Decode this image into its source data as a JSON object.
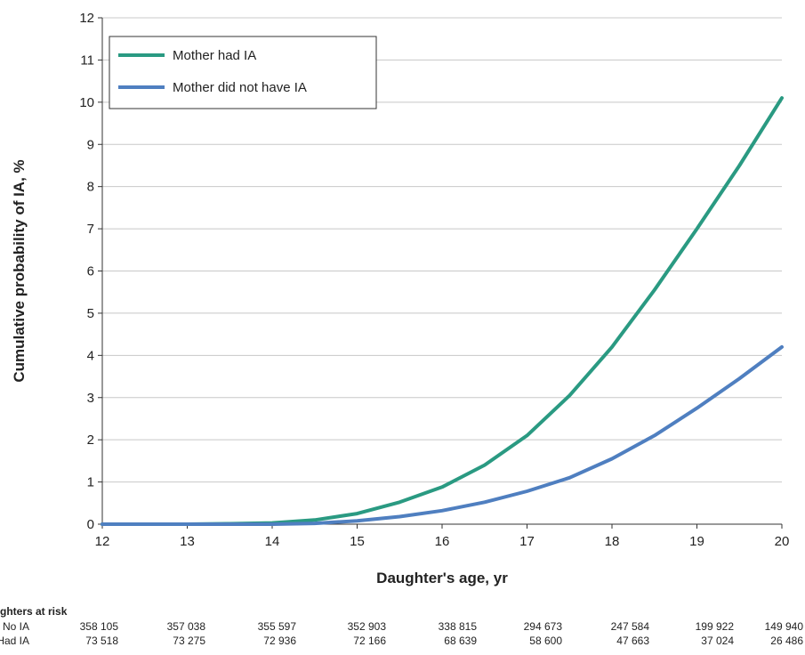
{
  "chart_data": {
    "type": "line",
    "xlabel": "Daughter's age, yr",
    "ylabel": "Cumulative probability of IA, %",
    "xlim": [
      12,
      20
    ],
    "ylim": [
      0,
      12
    ],
    "x_ticks": [
      12,
      13,
      14,
      15,
      16,
      17,
      18,
      19,
      20
    ],
    "y_ticks": [
      0,
      1,
      2,
      3,
      4,
      5,
      6,
      7,
      8,
      9,
      10,
      11,
      12
    ],
    "grid": "horizontal",
    "legend_position": "top-left",
    "series": [
      {
        "name": "Mother had IA",
        "color": "#2a9a82",
        "x": [
          12,
          13,
          13.5,
          14,
          14.5,
          15,
          15.5,
          16,
          16.5,
          17,
          17.5,
          18,
          18.5,
          19,
          19.5,
          20
        ],
        "y": [
          0,
          0,
          0.01,
          0.03,
          0.1,
          0.25,
          0.52,
          0.88,
          1.4,
          2.1,
          3.05,
          4.2,
          5.55,
          7.0,
          8.5,
          10.1
        ]
      },
      {
        "name": "Mother did not have  IA",
        "color": "#4f7fc0",
        "x": [
          12,
          13,
          14,
          14.5,
          15,
          15.5,
          16,
          16.5,
          17,
          17.5,
          18,
          18.5,
          19,
          19.5,
          20
        ],
        "y": [
          0,
          0,
          0,
          0.02,
          0.08,
          0.18,
          0.32,
          0.52,
          0.78,
          1.1,
          1.55,
          2.1,
          2.75,
          3.45,
          4.2
        ]
      }
    ]
  },
  "risk_table": {
    "title": "ghters at risk",
    "rows": [
      {
        "label": "No IA",
        "values": [
          "358 105",
          "357 038",
          "355 597",
          "352 903",
          "338 815",
          "294 673",
          "247 584",
          "199 922",
          "149 940"
        ]
      },
      {
        "label": "Had IA",
        "values": [
          "73 518",
          "73 275",
          "72 936",
          "72 166",
          "68 639",
          "58 600",
          "47 663",
          "37 024",
          "26 486"
        ]
      }
    ]
  }
}
